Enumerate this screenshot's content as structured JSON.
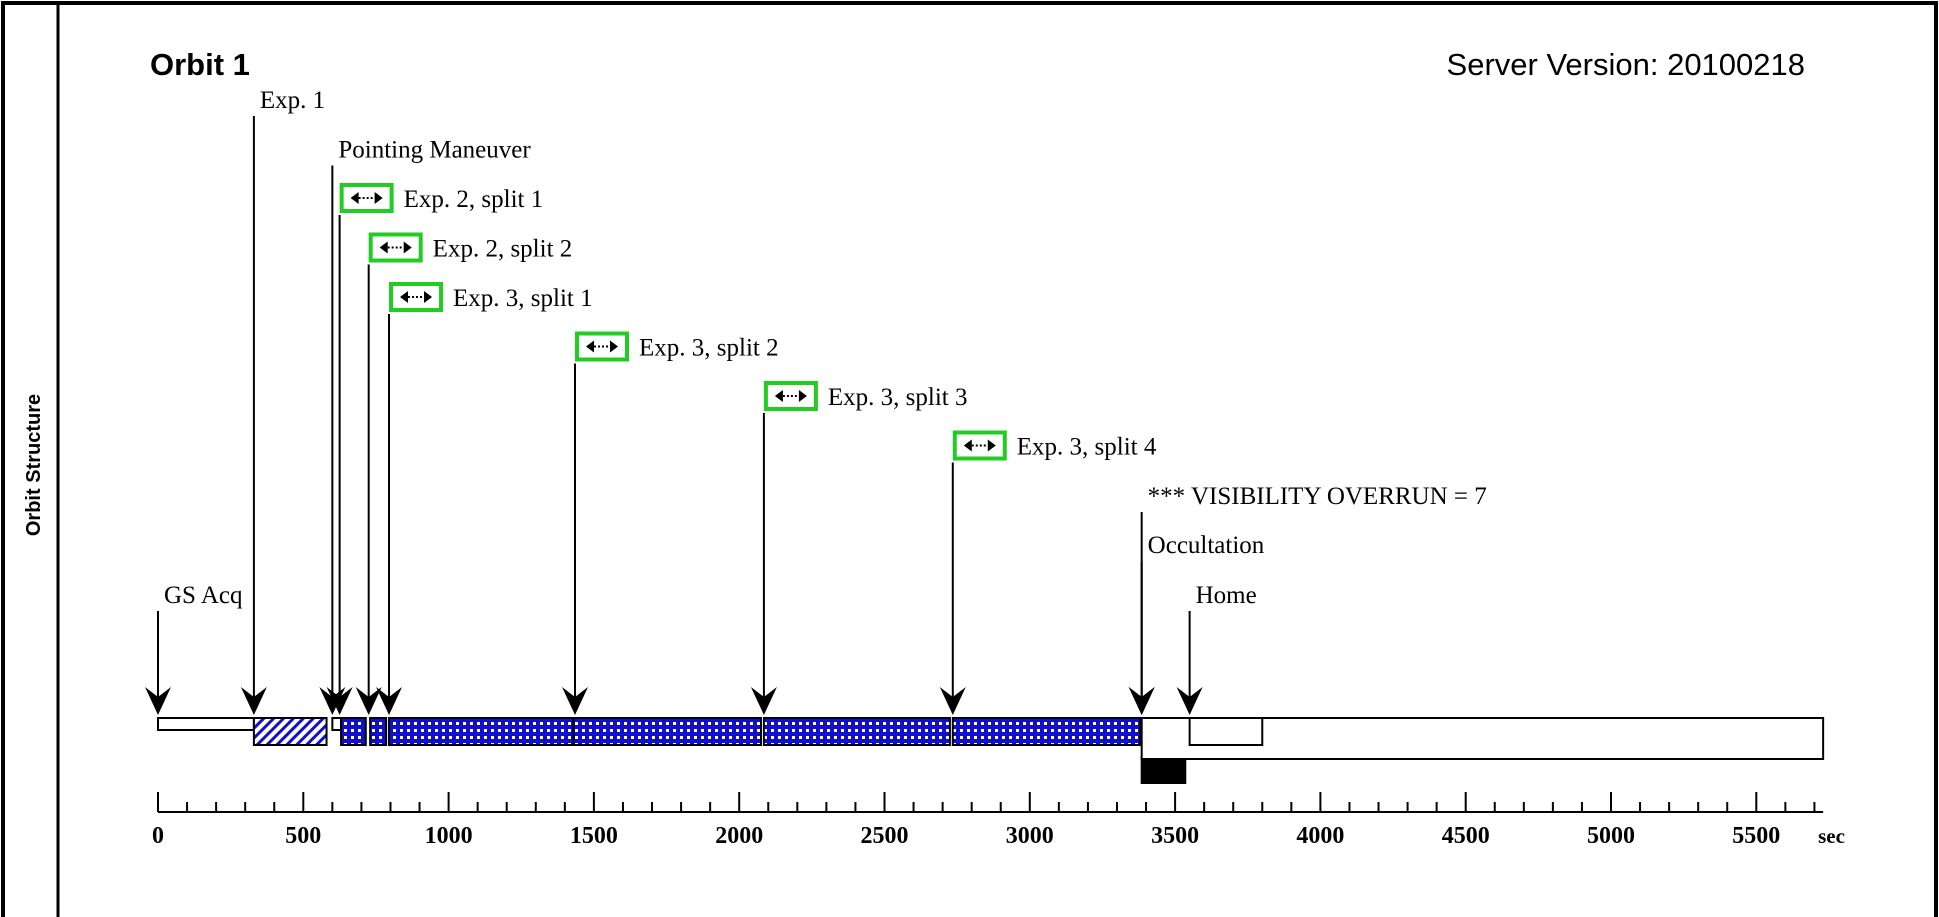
{
  "side_label": "Orbit Structure",
  "header": {
    "title": "Orbit 1",
    "server_version": "Server Version: 20100218"
  },
  "events": [
    {
      "label": "Exp. 1",
      "time": 330,
      "split_icon": false
    },
    {
      "label": "Pointing Maneuver",
      "time": 600,
      "split_icon": false
    },
    {
      "label": "Exp. 2, split 1",
      "time": 625,
      "split_icon": true
    },
    {
      "label": "Exp. 2, split 2",
      "time": 725,
      "split_icon": true
    },
    {
      "label": "Exp. 3, split 1",
      "time": 795,
      "split_icon": true
    },
    {
      "label": "Exp. 3, split 2",
      "time": 1435,
      "split_icon": true
    },
    {
      "label": "Exp. 3, split 3",
      "time": 2085,
      "split_icon": true
    },
    {
      "label": "Exp. 3, split 4",
      "time": 2735,
      "split_icon": true
    },
    {
      "label": "*** VISIBILITY OVERRUN = 7",
      "time": 3385,
      "split_icon": false
    },
    {
      "label": "Occultation",
      "time": 3385,
      "split_icon": false
    },
    {
      "label": "Home",
      "time": 3550,
      "split_icon": false
    },
    {
      "label": "GS Acq",
      "time": 0,
      "split_icon": false
    }
  ],
  "segments": [
    {
      "name": "gs-acq",
      "start": 0,
      "end": 330,
      "fill": "open-low"
    },
    {
      "name": "exp1",
      "start": 330,
      "end": 580,
      "fill": "hatched"
    },
    {
      "name": "maneuver",
      "start": 600,
      "end": 630,
      "fill": "open-low"
    },
    {
      "name": "exp2-split1",
      "start": 630,
      "end": 715,
      "fill": "dotted"
    },
    {
      "name": "exp2-split2",
      "start": 730,
      "end": 785,
      "fill": "dotted"
    },
    {
      "name": "exp3-split1",
      "start": 795,
      "end": 1430,
      "fill": "dotted"
    },
    {
      "name": "exp3-split2",
      "start": 1430,
      "end": 2075,
      "fill": "dotted"
    },
    {
      "name": "exp3-split3",
      "start": 2085,
      "end": 2725,
      "fill": "dotted"
    },
    {
      "name": "exp3-split4",
      "start": 2735,
      "end": 3380,
      "fill": "dotted"
    },
    {
      "name": "occultation",
      "start": 3385,
      "end": 3535,
      "fill": "solid-low"
    },
    {
      "name": "home-box",
      "start": 3550,
      "end": 3800,
      "fill": "open-high"
    },
    {
      "name": "orbit-rest",
      "start": 3385,
      "end": 5730,
      "fill": "open-tall"
    }
  ],
  "axis": {
    "min": 0,
    "max": 5730,
    "ticks": [
      "0",
      "500",
      "1000",
      "1500",
      "2000",
      "2500",
      "3000",
      "3500",
      "4000",
      "4500",
      "5000",
      "5500"
    ],
    "unit": "sec"
  },
  "colors": {
    "border": "#000000",
    "split_icon": "#22cc22",
    "fill_blue": "#1010cc"
  }
}
